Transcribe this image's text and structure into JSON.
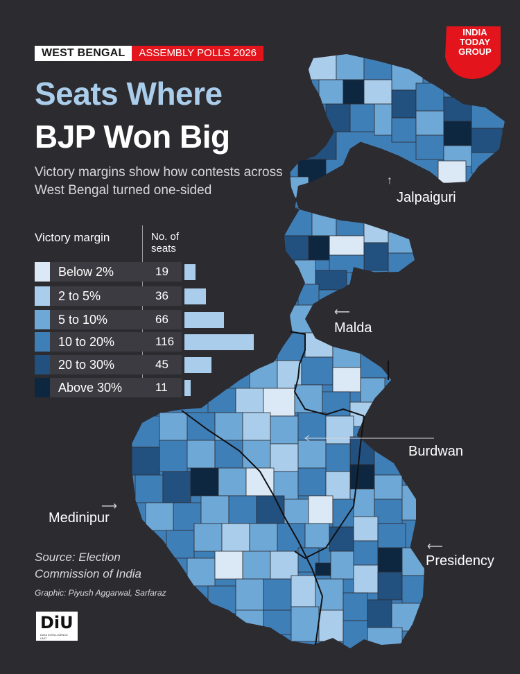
{
  "header": {
    "tag_left": "WEST BENGAL",
    "tag_right": "ASSEMBLY POLLS 2026",
    "title_line1": "Seats Where",
    "title_line2": "BJP Won Big",
    "subtitle": "Victory margins show how contests across West Bengal turned one-sided"
  },
  "legend": {
    "heading_margin": "Victory margin",
    "heading_seats": "No. of seats",
    "rows": [
      {
        "range": "Below 2%",
        "seats": "19",
        "color": "#dbe9f6"
      },
      {
        "range": "2 to 5%",
        "seats": "36",
        "color": "#a9cdea"
      },
      {
        "range": "5 to 10%",
        "seats": "66",
        "color": "#6ea8d6"
      },
      {
        "range": "10 to 20%",
        "seats": "116",
        "color": "#3f7fb8"
      },
      {
        "range": "20 to 30%",
        "seats": "45",
        "color": "#22507f"
      },
      {
        "range": "Above 30%",
        "seats": "11",
        "color": "#0e2740"
      }
    ]
  },
  "chart_data": {
    "type": "bar",
    "categories": [
      "Below 2%",
      "2 to 5%",
      "5 to 10%",
      "10 to 20%",
      "20 to 30%",
      "Above 30%"
    ],
    "values": [
      19,
      36,
      66,
      116,
      45,
      11
    ],
    "title": "Seats Where BJP Won Big",
    "xlabel": "Victory margin",
    "ylabel": "No. of seats"
  },
  "regions": {
    "jalpaiguri": "Jalpaiguri",
    "malda": "Malda",
    "burdwan": "Burdwan",
    "medinipur": "Medinipur",
    "presidency": "Presidency"
  },
  "footer": {
    "source": "Source: Election Commission of India",
    "credit": "Graphic: Piyush Aggarwal, Sarfaraz",
    "diu_logo_text": "DiU",
    "diu_logo_small": "DATA INTELLIGENCE UNIT"
  },
  "brand": {
    "india_today_logo": "INDIA TODAY GROUP",
    "accent": "#e3141b"
  }
}
